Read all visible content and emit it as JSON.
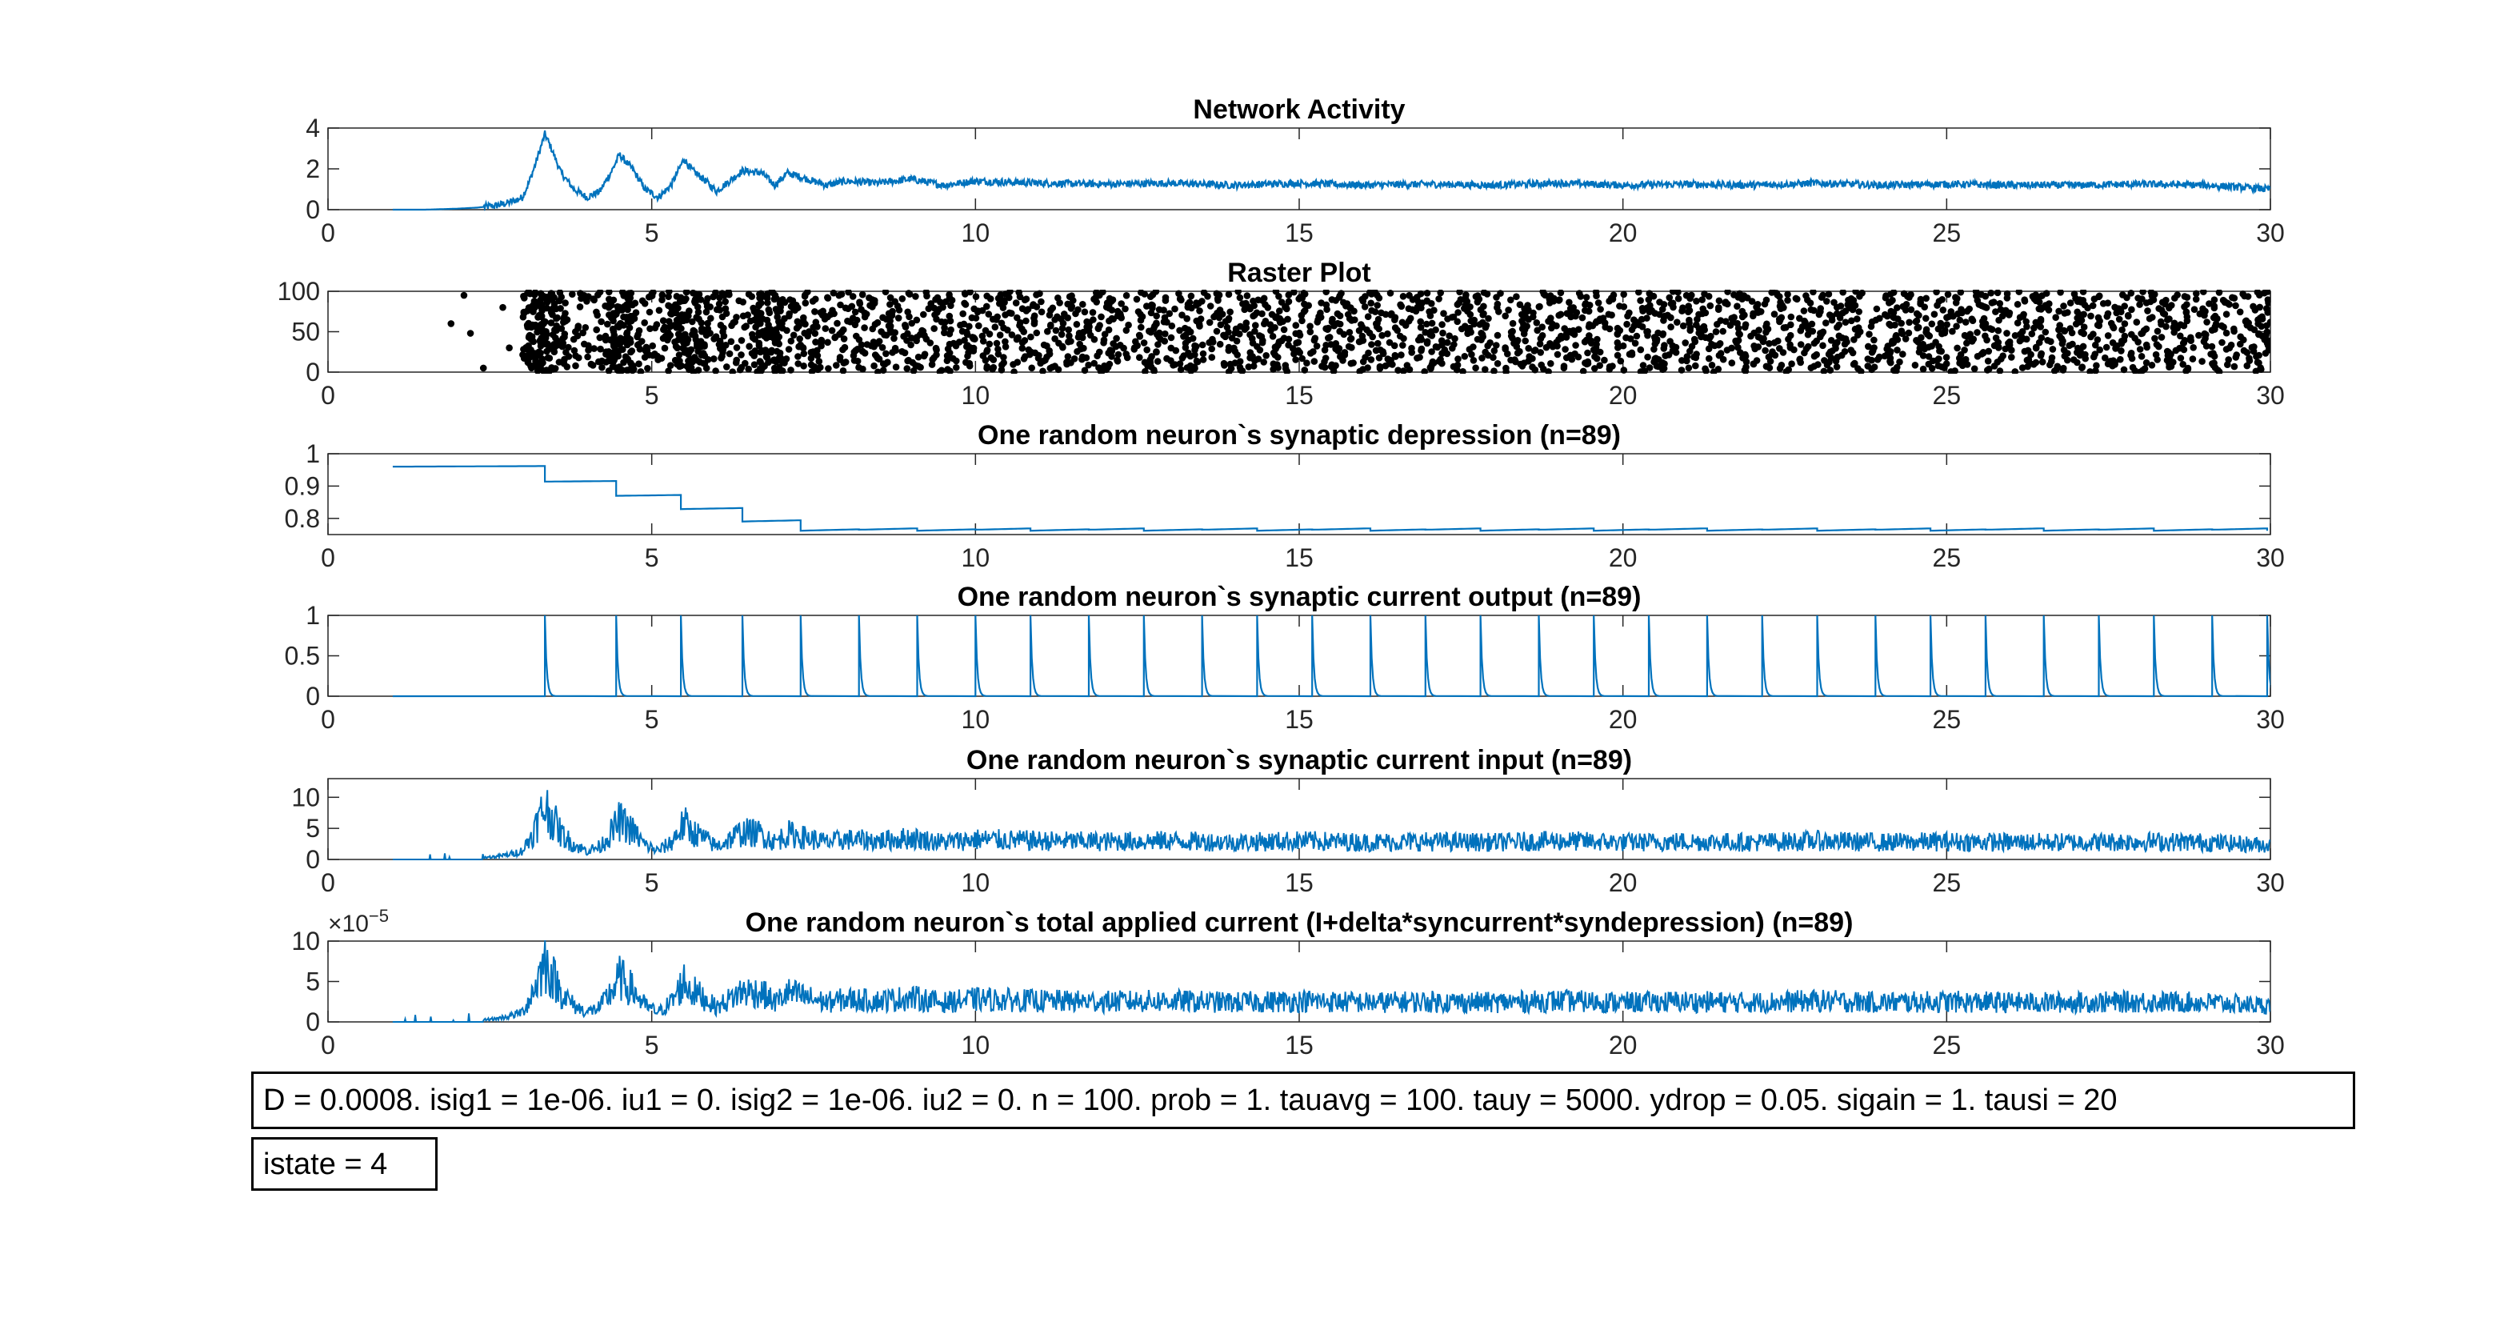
{
  "figure": {
    "annotations": {
      "params": "D = 0.0008. isig1 = 1e-06. iu1 = 0. isig2 = 1e-06. iu2 = 0. n = 100. prob = 1. tauavg = 100. tauy = 5000. ydrop = 0.05. sigain = 1. tausi = 20",
      "istate": "istate = 4"
    }
  },
  "chart_data": [
    {
      "type": "line",
      "title": "Network Activity",
      "xlim": [
        0,
        30
      ],
      "ylim": [
        0,
        4
      ],
      "xticks": [
        0,
        5,
        10,
        15,
        20,
        25,
        30
      ],
      "yticks": [
        0,
        2,
        4
      ],
      "series_color": "#0072BD",
      "series": [
        {
          "x": [
            1,
            1.5,
            2,
            2.3,
            2.6,
            2.8,
            3.0,
            3.1,
            3.2,
            3.3,
            3.35,
            3.45,
            3.6,
            3.8,
            4.0,
            4.2,
            4.4,
            4.5,
            4.7,
            4.9,
            5.1,
            5.3,
            5.5,
            5.6,
            5.8,
            6.0,
            6.2,
            6.4,
            6.7,
            6.9,
            7.1,
            7.4,
            7.7,
            8.0,
            8.5,
            9,
            9.5,
            10,
            11,
            12,
            13,
            14,
            15,
            16,
            17,
            18,
            19,
            20,
            21,
            22,
            23,
            24,
            25,
            26,
            27,
            28,
            29,
            30
          ],
          "y": [
            0,
            0,
            0.05,
            0.1,
            0.2,
            0.35,
            0.6,
            1.3,
            2.2,
            3.2,
            3.7,
            3.0,
            1.8,
            1.0,
            0.6,
            0.9,
            2.0,
            2.7,
            2.0,
            1.0,
            0.6,
            1.2,
            2.5,
            2.0,
            1.5,
            0.9,
            1.4,
            1.9,
            1.8,
            1.2,
            1.8,
            1.5,
            1.2,
            1.4,
            1.3,
            1.5,
            1.2,
            1.4,
            1.3,
            1.25,
            1.3,
            1.2,
            1.3,
            1.2,
            1.25,
            1.2,
            1.3,
            1.2,
            1.25,
            1.2,
            1.3,
            1.2,
            1.25,
            1.2,
            1.2,
            1.25,
            1.2,
            1.0
          ]
        }
      ]
    },
    {
      "type": "scatter",
      "title": "Raster Plot",
      "xlim": [
        0,
        30
      ],
      "ylim": [
        0,
        100
      ],
      "xticks": [
        0,
        5,
        10,
        15,
        20,
        25,
        30
      ],
      "yticks": [
        0,
        50,
        100
      ],
      "marker_color": "#000000",
      "points": [
        [
          1.9,
          60
        ],
        [
          2.1,
          95
        ],
        [
          2.2,
          48
        ],
        [
          2.4,
          5
        ],
        [
          2.7,
          80
        ],
        [
          2.8,
          30
        ]
      ],
      "density": {
        "x_start": 3.0,
        "x_end": 30,
        "neurons": 100,
        "spikes_per_neuron_per_unit": 1.0,
        "burst_centers": [
          3.3,
          4.5,
          5.6,
          6.8
        ]
      }
    },
    {
      "type": "line",
      "title": "One random neuron`s synaptic depression (n=89)",
      "xlim": [
        0,
        30
      ],
      "ylim": [
        0.75,
        1
      ],
      "xticks": [
        0,
        5,
        10,
        15,
        20,
        25,
        30
      ],
      "yticks": [
        0.8,
        0.9,
        1
      ],
      "ytick_labels": [
        "0.8",
        "0.9",
        "1"
      ],
      "series_color": "#0072BD",
      "spike_times": [
        3.35,
        4.45,
        5.45,
        6.4,
        7.3,
        8.2,
        9.1,
        10.0,
        10.85,
        11.75,
        12.6,
        13.5,
        14.35,
        15.2,
        16.1,
        16.95,
        17.8,
        18.7,
        19.55,
        20.4,
        21.3,
        22.15,
        23.0,
        23.9,
        24.75,
        25.6,
        26.5,
        27.35,
        28.2,
        29.1,
        29.95
      ],
      "series": [
        {
          "start_x": 1,
          "start_value": 0.96,
          "drop_fraction": 0.05,
          "recovery_tau": 50
        }
      ]
    },
    {
      "type": "line",
      "title": "One random neuron`s synaptic current output (n=89)",
      "xlim": [
        0,
        30
      ],
      "ylim": [
        0,
        1
      ],
      "xticks": [
        0,
        5,
        10,
        15,
        20,
        25,
        30
      ],
      "yticks": [
        0,
        0.5,
        1
      ],
      "ytick_labels": [
        "0",
        "0.5",
        "1"
      ],
      "series_color": "#0072BD",
      "series": [
        {
          "start_x": 1,
          "spike_times_ref": 2,
          "peak": 1,
          "decay_tau": 0.08
        }
      ]
    },
    {
      "type": "line",
      "title": "One random neuron`s synaptic current input (n=89)",
      "xlim": [
        0,
        30
      ],
      "ylim": [
        0,
        13
      ],
      "xticks": [
        0,
        5,
        10,
        15,
        20,
        25,
        30
      ],
      "yticks": [
        0,
        5,
        10
      ],
      "series_color": "#0072BD",
      "envelope_ref": 0,
      "series": [
        {
          "scale": 2.3,
          "noise": 0.55,
          "start_x": 1
        }
      ]
    },
    {
      "type": "line",
      "title": "One random neuron`s total applied current (I+delta*syncurrent*syndepression) (n=89)",
      "xlim": [
        0,
        30
      ],
      "ylim": [
        0,
        10
      ],
      "xticks": [
        0,
        5,
        10,
        15,
        20,
        25,
        30
      ],
      "yticks": [
        0,
        5,
        10
      ],
      "exponent_label": "×10",
      "exponent_power": "−5",
      "series_color": "#0072BD",
      "envelope_ref": 0,
      "series": [
        {
          "scale": 2.0,
          "noise": 0.55,
          "start_x": 1
        }
      ]
    }
  ]
}
